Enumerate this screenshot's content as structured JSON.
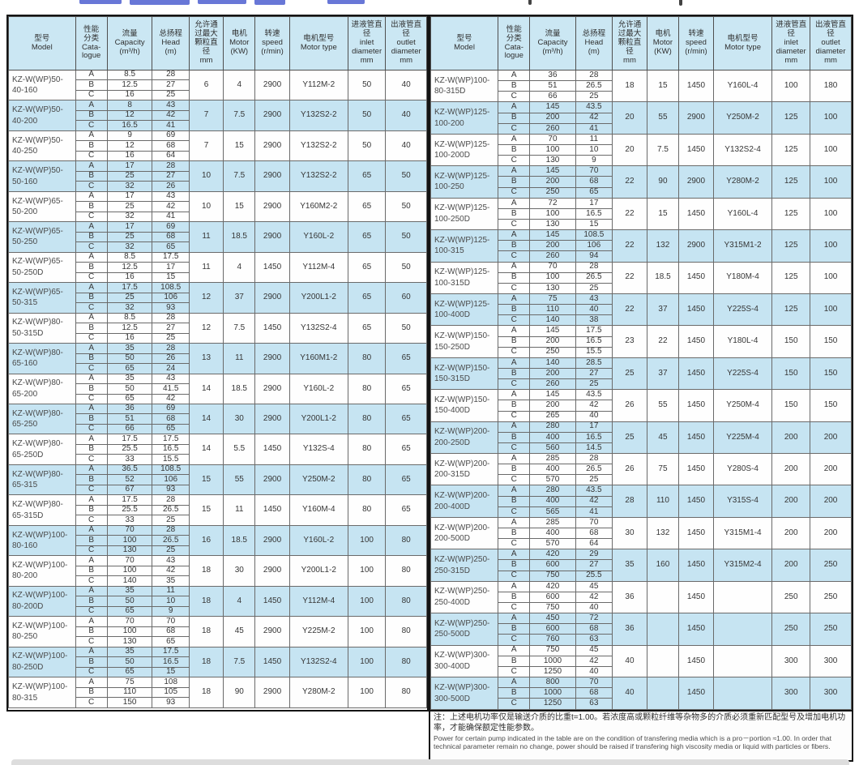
{
  "header": {
    "cols": [
      "型号\nModel",
      "性能\n分类\nCata-\nlogue",
      "流量\nCapacity\n(m³/h)",
      "总扬程\nHead\n(m)",
      "允许通\n过最大\n颗粒直\n径\nmm",
      "电机\nMotor\n(KW)",
      "转速\nspeed\n(r/min)",
      "电机型号\nMotor type",
      "进液管直\n径\ninlet\ndiameter\nmm",
      "出液管直\n径\noutlet\ndiameter\nmm"
    ]
  },
  "left_table": {
    "rows": [
      {
        "model": "KZ-W(WP)50-\n40-160",
        "abc": [
          [
            "A",
            "8.5",
            "28"
          ],
          [
            "B",
            "12.5",
            "27"
          ],
          [
            "C",
            "16",
            "25"
          ]
        ],
        "grain": "6",
        "kw": "4",
        "rpm": "2900",
        "type": "Y112M-2",
        "in": "50",
        "out": "40"
      },
      {
        "model": "KZ-W(WP)50-\n40-200",
        "abc": [
          [
            "A",
            "8",
            "43"
          ],
          [
            "B",
            "12",
            "42"
          ],
          [
            "C",
            "16.5",
            "41"
          ]
        ],
        "grain": "7",
        "kw": "7.5",
        "rpm": "2900",
        "type": "Y132S2-2",
        "in": "50",
        "out": "40"
      },
      {
        "model": "KZ-W(WP)50-\n40-250",
        "abc": [
          [
            "A",
            "9",
            "69"
          ],
          [
            "B",
            "12",
            "68"
          ],
          [
            "C",
            "16",
            "64"
          ]
        ],
        "grain": "7",
        "kw": "15",
        "rpm": "2900",
        "type": "Y132S2-2",
        "in": "50",
        "out": "40"
      },
      {
        "model": "KZ-W(WP)50-\n50-160",
        "abc": [
          [
            "A",
            "17",
            "28"
          ],
          [
            "B",
            "25",
            "27"
          ],
          [
            "C",
            "32",
            "26"
          ]
        ],
        "grain": "10",
        "kw": "7.5",
        "rpm": "2900",
        "type": "Y132S2-2",
        "in": "65",
        "out": "50"
      },
      {
        "model": "KZ-W(WP)65-\n50-200",
        "abc": [
          [
            "A",
            "17",
            "43"
          ],
          [
            "B",
            "25",
            "42"
          ],
          [
            "C",
            "32",
            "41"
          ]
        ],
        "grain": "10",
        "kw": "15",
        "rpm": "2900",
        "type": "Y160M2-2",
        "in": "65",
        "out": "50"
      },
      {
        "model": "KZ-W(WP)65-\n50-250",
        "abc": [
          [
            "A",
            "17",
            "69"
          ],
          [
            "B",
            "25",
            "68"
          ],
          [
            "C",
            "32",
            "65"
          ]
        ],
        "grain": "11",
        "kw": "18.5",
        "rpm": "2900",
        "type": "Y160L-2",
        "in": "65",
        "out": "50"
      },
      {
        "model": "KZ-W(WP)65-\n50-250D",
        "abc": [
          [
            "A",
            "8.5",
            "17.5"
          ],
          [
            "B",
            "12.5",
            "17"
          ],
          [
            "C",
            "16",
            "15"
          ]
        ],
        "grain": "11",
        "kw": "4",
        "rpm": "1450",
        "type": "Y112M-4",
        "in": "65",
        "out": "50"
      },
      {
        "model": "KZ-W(WP)65-\n50-315",
        "abc": [
          [
            "A",
            "17.5",
            "108.5"
          ],
          [
            "B",
            "25",
            "106"
          ],
          [
            "C",
            "32",
            "93"
          ]
        ],
        "grain": "12",
        "kw": "37",
        "rpm": "2900",
        "type": "Y200L1-2",
        "in": "65",
        "out": "60"
      },
      {
        "model": "KZ-W(WP)80-\n50-315D",
        "abc": [
          [
            "A",
            "8.5",
            "28"
          ],
          [
            "B",
            "12.5",
            "27"
          ],
          [
            "C",
            "16",
            "25"
          ]
        ],
        "grain": "12",
        "kw": "7.5",
        "rpm": "1450",
        "type": "Y132S2-4",
        "in": "65",
        "out": "50"
      },
      {
        "model": "KZ-W(WP)80-\n65-160",
        "abc": [
          [
            "A",
            "35",
            "28"
          ],
          [
            "B",
            "50",
            "26"
          ],
          [
            "C",
            "65",
            "24"
          ]
        ],
        "grain": "13",
        "kw": "11",
        "rpm": "2900",
        "type": "Y160M1-2",
        "in": "80",
        "out": "65"
      },
      {
        "model": "KZ-W(WP)80-\n65-200",
        "abc": [
          [
            "A",
            "35",
            "43"
          ],
          [
            "B",
            "50",
            "41.5"
          ],
          [
            "C",
            "65",
            "42"
          ]
        ],
        "grain": "14",
        "kw": "18.5",
        "rpm": "2900",
        "type": "Y160L-2",
        "in": "80",
        "out": "65"
      },
      {
        "model": "KZ-W(WP)80-\n65-250",
        "abc": [
          [
            "A",
            "36",
            "69"
          ],
          [
            "B",
            "51",
            "68"
          ],
          [
            "C",
            "66",
            "65"
          ]
        ],
        "grain": "14",
        "kw": "30",
        "rpm": "2900",
        "type": "Y200L1-2",
        "in": "80",
        "out": "65"
      },
      {
        "model": "KZ-W(WP)80-\n65-250D",
        "abc": [
          [
            "A",
            "17.5",
            "17.5"
          ],
          [
            "B",
            "25.5",
            "16.5"
          ],
          [
            "C",
            "33",
            "15.5"
          ]
        ],
        "grain": "14",
        "kw": "5.5",
        "rpm": "1450",
        "type": "Y132S-4",
        "in": "80",
        "out": "65"
      },
      {
        "model": "KZ-W(WP)80-\n65-315",
        "abc": [
          [
            "A",
            "36.5",
            "108.5"
          ],
          [
            "B",
            "52",
            "106"
          ],
          [
            "C",
            "67",
            "93"
          ]
        ],
        "grain": "15",
        "kw": "55",
        "rpm": "2900",
        "type": "Y250M-2",
        "in": "80",
        "out": "65"
      },
      {
        "model": "KZ-W(WP)80-\n65-315D",
        "abc": [
          [
            "A",
            "17.5",
            "28"
          ],
          [
            "B",
            "25.5",
            "26.5"
          ],
          [
            "C",
            "33",
            "25"
          ]
        ],
        "grain": "15",
        "kw": "11",
        "rpm": "1450",
        "type": "Y160M-4",
        "in": "80",
        "out": "65"
      },
      {
        "model": "KZ-W(WP)100-\n80-160",
        "abc": [
          [
            "A",
            "70",
            "28"
          ],
          [
            "B",
            "100",
            "26.5"
          ],
          [
            "C",
            "130",
            "25"
          ]
        ],
        "grain": "16",
        "kw": "18.5",
        "rpm": "2900",
        "type": "Y160L-2",
        "in": "100",
        "out": "80"
      },
      {
        "model": "KZ-W(WP)100-\n80-200",
        "abc": [
          [
            "A",
            "70",
            "43"
          ],
          [
            "B",
            "100",
            "42"
          ],
          [
            "C",
            "140",
            "35"
          ]
        ],
        "grain": "18",
        "kw": "30",
        "rpm": "2900",
        "type": "Y200L1-2",
        "in": "100",
        "out": "80"
      },
      {
        "model": "KZ-W(WP)100-\n80-200D",
        "abc": [
          [
            "A",
            "35",
            "11"
          ],
          [
            "B",
            "50",
            "10"
          ],
          [
            "C",
            "65",
            "9"
          ]
        ],
        "grain": "18",
        "kw": "4",
        "rpm": "1450",
        "type": "Y112M-4",
        "in": "100",
        "out": "80"
      },
      {
        "model": "KZ-W(WP)100-\n80-250",
        "abc": [
          [
            "A",
            "70",
            "70"
          ],
          [
            "B",
            "100",
            "68"
          ],
          [
            "C",
            "130",
            "65"
          ]
        ],
        "grain": "18",
        "kw": "45",
        "rpm": "2900",
        "type": "Y225M-2",
        "in": "100",
        "out": "80"
      },
      {
        "model": "KZ-W(WP)100-\n80-250D",
        "abc": [
          [
            "A",
            "35",
            "17.5"
          ],
          [
            "B",
            "50",
            "16.5"
          ],
          [
            "C",
            "65",
            "15"
          ]
        ],
        "grain": "18",
        "kw": "7.5",
        "rpm": "1450",
        "type": "Y132S2-4",
        "in": "100",
        "out": "80"
      },
      {
        "model": "KZ-W(WP)100-\n80-315",
        "abc": [
          [
            "A",
            "75",
            "108"
          ],
          [
            "B",
            "110",
            "105"
          ],
          [
            "C",
            "150",
            "93"
          ]
        ],
        "grain": "18",
        "kw": "90",
        "rpm": "2900",
        "type": "Y280M-2",
        "in": "100",
        "out": "80"
      }
    ]
  },
  "right_table": {
    "rows": [
      {
        "model": "KZ-W(WP)100-\n80-315D",
        "abc": [
          [
            "A",
            "36",
            "28"
          ],
          [
            "B",
            "51",
            "26.5"
          ],
          [
            "C",
            "66",
            "25"
          ]
        ],
        "grain": "18",
        "kw": "15",
        "rpm": "1450",
        "type": "Y160L-4",
        "in": "100",
        "out": "180"
      },
      {
        "model": "KZ-W(WP)125-\n100-200",
        "abc": [
          [
            "A",
            "145",
            "43.5"
          ],
          [
            "B",
            "200",
            "42"
          ],
          [
            "C",
            "260",
            "41"
          ]
        ],
        "grain": "20",
        "kw": "55",
        "rpm": "2900",
        "type": "Y250M-2",
        "in": "125",
        "out": "100"
      },
      {
        "model": "KZ-W(WP)125-\n100-200D",
        "abc": [
          [
            "A",
            "70",
            "11"
          ],
          [
            "B",
            "100",
            "10"
          ],
          [
            "C",
            "130",
            "9"
          ]
        ],
        "grain": "20",
        "kw": "7.5",
        "rpm": "1450",
        "type": "Y132S2-4",
        "in": "125",
        "out": "100"
      },
      {
        "model": "KZ-W(WP)125-\n100-250",
        "abc": [
          [
            "A",
            "145",
            "70"
          ],
          [
            "B",
            "200",
            "68"
          ],
          [
            "C",
            "250",
            "65"
          ]
        ],
        "grain": "22",
        "kw": "90",
        "rpm": "2900",
        "type": "Y280M-2",
        "in": "125",
        "out": "100"
      },
      {
        "model": "KZ-W(WP)125-\n100-250D",
        "abc": [
          [
            "A",
            "72",
            "17"
          ],
          [
            "B",
            "100",
            "16.5"
          ],
          [
            "C",
            "130",
            "15"
          ]
        ],
        "grain": "22",
        "kw": "15",
        "rpm": "1450",
        "type": "Y160L-4",
        "in": "125",
        "out": "100"
      },
      {
        "model": "KZ-W(WP)125-\n100-315",
        "abc": [
          [
            "A",
            "145",
            "108.5"
          ],
          [
            "B",
            "200",
            "106"
          ],
          [
            "C",
            "260",
            "94"
          ]
        ],
        "grain": "22",
        "kw": "132",
        "rpm": "2900",
        "type": "Y315M1-2",
        "in": "125",
        "out": "100"
      },
      {
        "model": "KZ-W(WP)125-\n100-315D",
        "abc": [
          [
            "A",
            "70",
            "28"
          ],
          [
            "B",
            "100",
            "26.5"
          ],
          [
            "C",
            "130",
            "25"
          ]
        ],
        "grain": "22",
        "kw": "18.5",
        "rpm": "1450",
        "type": "Y180M-4",
        "in": "125",
        "out": "100"
      },
      {
        "model": "KZ-W(WP)125-\n100-400D",
        "abc": [
          [
            "A",
            "75",
            "43"
          ],
          [
            "B",
            "110",
            "40"
          ],
          [
            "C",
            "140",
            "38"
          ]
        ],
        "grain": "22",
        "kw": "37",
        "rpm": "1450",
        "type": "Y225S-4",
        "in": "125",
        "out": "100"
      },
      {
        "model": "KZ-W(WP)150-\n150-250D",
        "abc": [
          [
            "A",
            "145",
            "17.5"
          ],
          [
            "B",
            "200",
            "16.5"
          ],
          [
            "C",
            "250",
            "15.5"
          ]
        ],
        "grain": "23",
        "kw": "22",
        "rpm": "1450",
        "type": "Y180L-4",
        "in": "150",
        "out": "150"
      },
      {
        "model": "KZ-W(WP)150-\n150-315D",
        "abc": [
          [
            "A",
            "140",
            "28.5"
          ],
          [
            "B",
            "200",
            "27"
          ],
          [
            "C",
            "260",
            "25"
          ]
        ],
        "grain": "25",
        "kw": "37",
        "rpm": "1450",
        "type": "Y225S-4",
        "in": "150",
        "out": "150"
      },
      {
        "model": "KZ-W(WP)150-\n150-400D",
        "abc": [
          [
            "A",
            "145",
            "43.5"
          ],
          [
            "B",
            "200",
            "42"
          ],
          [
            "C",
            "265",
            "40"
          ]
        ],
        "grain": "26",
        "kw": "55",
        "rpm": "1450",
        "type": "Y250M-4",
        "in": "150",
        "out": "150"
      },
      {
        "model": "KZ-W(WP)200-\n200-250D",
        "abc": [
          [
            "A",
            "280",
            "17"
          ],
          [
            "B",
            "400",
            "16.5"
          ],
          [
            "C",
            "560",
            "14.5"
          ]
        ],
        "grain": "25",
        "kw": "45",
        "rpm": "1450",
        "type": "Y225M-4",
        "in": "200",
        "out": "200"
      },
      {
        "model": "KZ-W(WP)200-\n200-315D",
        "abc": [
          [
            "A",
            "285",
            "28"
          ],
          [
            "B",
            "400",
            "26.5"
          ],
          [
            "C",
            "570",
            "25"
          ]
        ],
        "grain": "26",
        "kw": "75",
        "rpm": "1450",
        "type": "Y280S-4",
        "in": "200",
        "out": "200"
      },
      {
        "model": "KZ-W(WP)200-\n200-400D",
        "abc": [
          [
            "A",
            "280",
            "43.5"
          ],
          [
            "B",
            "400",
            "42"
          ],
          [
            "C",
            "565",
            "41"
          ]
        ],
        "grain": "28",
        "kw": "110",
        "rpm": "1450",
        "type": "Y315S-4",
        "in": "200",
        "out": "200"
      },
      {
        "model": "KZ-W(WP)200-\n200-500D",
        "abc": [
          [
            "A",
            "285",
            "70"
          ],
          [
            "B",
            "400",
            "68"
          ],
          [
            "C",
            "570",
            "64"
          ]
        ],
        "grain": "30",
        "kw": "132",
        "rpm": "1450",
        "type": "Y315M1-4",
        "in": "200",
        "out": "200"
      },
      {
        "model": "KZ-W(WP)250-\n250-315D",
        "abc": [
          [
            "A",
            "420",
            "29"
          ],
          [
            "B",
            "600",
            "27"
          ],
          [
            "C",
            "750",
            "25.5"
          ]
        ],
        "grain": "35",
        "kw": "160",
        "rpm": "1450",
        "type": "Y315M2-4",
        "in": "200",
        "out": "250"
      },
      {
        "model": "KZ-W(WP)250-\n250-400D",
        "abc": [
          [
            "A",
            "420",
            "45"
          ],
          [
            "B",
            "600",
            "42"
          ],
          [
            "C",
            "750",
            "40"
          ]
        ],
        "grain": "36",
        "kw": "",
        "rpm": "1450",
        "type": "",
        "in": "250",
        "out": "250"
      },
      {
        "model": "KZ-W(WP)250-\n250-500D",
        "abc": [
          [
            "A",
            "450",
            "72"
          ],
          [
            "B",
            "600",
            "68"
          ],
          [
            "C",
            "760",
            "63"
          ]
        ],
        "grain": "36",
        "kw": "",
        "rpm": "1450",
        "type": "",
        "in": "250",
        "out": "250"
      },
      {
        "model": "KZ-W(WP)300-\n300-400D",
        "abc": [
          [
            "A",
            "750",
            "45"
          ],
          [
            "B",
            "1000",
            "42"
          ],
          [
            "C",
            "1250",
            "40"
          ]
        ],
        "grain": "40",
        "kw": "",
        "rpm": "1450",
        "type": "",
        "in": "300",
        "out": "300"
      },
      {
        "model": "KZ-W(WP)300-\n300-500D",
        "abc": [
          [
            "A",
            "800",
            "70"
          ],
          [
            "B",
            "1000",
            "68"
          ],
          [
            "C",
            "1250",
            "63"
          ]
        ],
        "grain": "40",
        "kw": "",
        "rpm": "1450",
        "type": "",
        "in": "300",
        "out": "300"
      }
    ]
  },
  "note": {
    "zh": "注：上述电机功率仅是输送介质的比重t=1.00。若浓度高或颗粒纤维等杂物多的介质必须重新匹配型号及增加电机功率，才能确保额定性能参数。",
    "en": "Power for certain pump indicated in the table are on the condition of transfering media which is a pro－portion ≈1.00. In order that technical parameter remain no change, power should  be raised if transfering high viscosity media or liquid with particles or fibers."
  },
  "colors": {
    "stripe_blue": "#c6e4f2",
    "header_blue": "#cbe7f3",
    "border_black": "#141414",
    "text_dark": "#363636"
  }
}
